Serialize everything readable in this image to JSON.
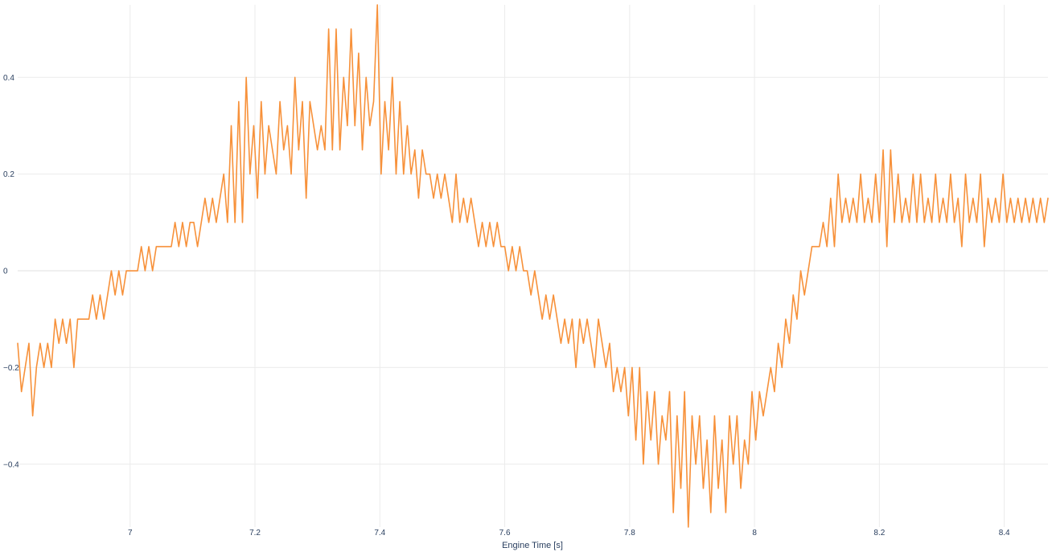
{
  "chart_data": {
    "type": "line",
    "xlabel": "Engine Time [s]",
    "ylabel": "",
    "xlim": [
      6.82,
      8.47
    ],
    "ylim": [
      -0.53,
      0.55
    ],
    "x_ticks": [
      7,
      7.2,
      7.4,
      7.6,
      7.8,
      8,
      8.2,
      8.4
    ],
    "x_tick_labels": [
      "7",
      "7.2",
      "7.4",
      "7.6",
      "7.8",
      "8",
      "8.2",
      "8.4"
    ],
    "y_ticks": [
      -0.4,
      -0.2,
      0,
      0.2,
      0.4
    ],
    "y_tick_labels": [
      "−0.4",
      "−0.2",
      "0",
      "0.2",
      "0.4"
    ],
    "grid": true,
    "series": [
      {
        "color": "#f7913a",
        "points": [
          [
            6.82,
            -0.15
          ],
          [
            6.826,
            -0.25
          ],
          [
            6.832,
            -0.2
          ],
          [
            6.838,
            -0.15
          ],
          [
            6.844,
            -0.3
          ],
          [
            6.85,
            -0.2
          ],
          [
            6.856,
            -0.15
          ],
          [
            6.862,
            -0.2
          ],
          [
            6.868,
            -0.15
          ],
          [
            6.874,
            -0.2
          ],
          [
            6.88,
            -0.1
          ],
          [
            6.886,
            -0.15
          ],
          [
            6.892,
            -0.1
          ],
          [
            6.898,
            -0.15
          ],
          [
            6.904,
            -0.1
          ],
          [
            6.91,
            -0.2
          ],
          [
            6.916,
            -0.1
          ],
          [
            6.922,
            -0.1
          ],
          [
            6.928,
            -0.1
          ],
          [
            6.934,
            -0.1
          ],
          [
            6.94,
            -0.05
          ],
          [
            6.946,
            -0.1
          ],
          [
            6.952,
            -0.05
          ],
          [
            6.958,
            -0.1
          ],
          [
            6.964,
            -0.05
          ],
          [
            6.97,
            0
          ],
          [
            6.976,
            -0.05
          ],
          [
            6.982,
            0
          ],
          [
            6.988,
            -0.05
          ],
          [
            6.994,
            0
          ],
          [
            7.0,
            0
          ],
          [
            7.006,
            0
          ],
          [
            7.012,
            0
          ],
          [
            7.018,
            0.05
          ],
          [
            7.024,
            0
          ],
          [
            7.03,
            0.05
          ],
          [
            7.036,
            0
          ],
          [
            7.042,
            0.05
          ],
          [
            7.048,
            0.05
          ],
          [
            7.054,
            0.05
          ],
          [
            7.06,
            0.05
          ],
          [
            7.066,
            0.05
          ],
          [
            7.072,
            0.1
          ],
          [
            7.078,
            0.05
          ],
          [
            7.084,
            0.1
          ],
          [
            7.09,
            0.05
          ],
          [
            7.096,
            0.1
          ],
          [
            7.102,
            0.1
          ],
          [
            7.108,
            0.05
          ],
          [
            7.114,
            0.1
          ],
          [
            7.12,
            0.15
          ],
          [
            7.126,
            0.1
          ],
          [
            7.132,
            0.15
          ],
          [
            7.138,
            0.1
          ],
          [
            7.144,
            0.15
          ],
          [
            7.15,
            0.2
          ],
          [
            7.156,
            0.1
          ],
          [
            7.162,
            0.3
          ],
          [
            7.168,
            0.1
          ],
          [
            7.174,
            0.35
          ],
          [
            7.18,
            0.1
          ],
          [
            7.186,
            0.4
          ],
          [
            7.192,
            0.2
          ],
          [
            7.198,
            0.3
          ],
          [
            7.204,
            0.15
          ],
          [
            7.21,
            0.35
          ],
          [
            7.216,
            0.2
          ],
          [
            7.222,
            0.3
          ],
          [
            7.228,
            0.25
          ],
          [
            7.234,
            0.2
          ],
          [
            7.24,
            0.35
          ],
          [
            7.246,
            0.25
          ],
          [
            7.252,
            0.3
          ],
          [
            7.258,
            0.2
          ],
          [
            7.264,
            0.4
          ],
          [
            7.27,
            0.25
          ],
          [
            7.276,
            0.35
          ],
          [
            7.282,
            0.15
          ],
          [
            7.288,
            0.35
          ],
          [
            7.294,
            0.3
          ],
          [
            7.3,
            0.25
          ],
          [
            7.306,
            0.3
          ],
          [
            7.312,
            0.25
          ],
          [
            7.318,
            0.5
          ],
          [
            7.324,
            0.25
          ],
          [
            7.33,
            0.5
          ],
          [
            7.336,
            0.25
          ],
          [
            7.342,
            0.4
          ],
          [
            7.348,
            0.3
          ],
          [
            7.354,
            0.5
          ],
          [
            7.36,
            0.3
          ],
          [
            7.366,
            0.45
          ],
          [
            7.372,
            0.25
          ],
          [
            7.378,
            0.4
          ],
          [
            7.384,
            0.3
          ],
          [
            7.39,
            0.35
          ],
          [
            7.396,
            0.55
          ],
          [
            7.402,
            0.2
          ],
          [
            7.408,
            0.35
          ],
          [
            7.414,
            0.25
          ],
          [
            7.42,
            0.4
          ],
          [
            7.426,
            0.2
          ],
          [
            7.432,
            0.35
          ],
          [
            7.438,
            0.2
          ],
          [
            7.444,
            0.3
          ],
          [
            7.45,
            0.2
          ],
          [
            7.456,
            0.25
          ],
          [
            7.462,
            0.15
          ],
          [
            7.468,
            0.25
          ],
          [
            7.474,
            0.2
          ],
          [
            7.48,
            0.2
          ],
          [
            7.486,
            0.15
          ],
          [
            7.492,
            0.2
          ],
          [
            7.498,
            0.15
          ],
          [
            7.504,
            0.2
          ],
          [
            7.51,
            0.15
          ],
          [
            7.516,
            0.1
          ],
          [
            7.522,
            0.2
          ],
          [
            7.528,
            0.1
          ],
          [
            7.534,
            0.15
          ],
          [
            7.54,
            0.1
          ],
          [
            7.546,
            0.15
          ],
          [
            7.552,
            0.1
          ],
          [
            7.558,
            0.05
          ],
          [
            7.564,
            0.1
          ],
          [
            7.57,
            0.05
          ],
          [
            7.576,
            0.1
          ],
          [
            7.582,
            0.05
          ],
          [
            7.588,
            0.1
          ],
          [
            7.594,
            0.05
          ],
          [
            7.6,
            0.05
          ],
          [
            7.606,
            0
          ],
          [
            7.612,
            0.05
          ],
          [
            7.618,
            0
          ],
          [
            7.624,
            0.05
          ],
          [
            7.63,
            0
          ],
          [
            7.636,
            0
          ],
          [
            7.642,
            -0.05
          ],
          [
            7.648,
            0
          ],
          [
            7.654,
            -0.05
          ],
          [
            7.66,
            -0.1
          ],
          [
            7.666,
            -0.05
          ],
          [
            7.672,
            -0.1
          ],
          [
            7.678,
            -0.05
          ],
          [
            7.684,
            -0.1
          ],
          [
            7.69,
            -0.15
          ],
          [
            7.696,
            -0.1
          ],
          [
            7.702,
            -0.15
          ],
          [
            7.708,
            -0.1
          ],
          [
            7.714,
            -0.2
          ],
          [
            7.72,
            -0.1
          ],
          [
            7.726,
            -0.15
          ],
          [
            7.732,
            -0.1
          ],
          [
            7.738,
            -0.15
          ],
          [
            7.744,
            -0.2
          ],
          [
            7.75,
            -0.1
          ],
          [
            7.756,
            -0.15
          ],
          [
            7.762,
            -0.2
          ],
          [
            7.768,
            -0.15
          ],
          [
            7.774,
            -0.25
          ],
          [
            7.78,
            -0.2
          ],
          [
            7.786,
            -0.25
          ],
          [
            7.792,
            -0.2
          ],
          [
            7.798,
            -0.3
          ],
          [
            7.804,
            -0.2
          ],
          [
            7.81,
            -0.35
          ],
          [
            7.816,
            -0.2
          ],
          [
            7.822,
            -0.4
          ],
          [
            7.828,
            -0.25
          ],
          [
            7.834,
            -0.35
          ],
          [
            7.84,
            -0.25
          ],
          [
            7.846,
            -0.4
          ],
          [
            7.852,
            -0.3
          ],
          [
            7.858,
            -0.35
          ],
          [
            7.864,
            -0.25
          ],
          [
            7.87,
            -0.5
          ],
          [
            7.876,
            -0.3
          ],
          [
            7.882,
            -0.45
          ],
          [
            7.888,
            -0.25
          ],
          [
            7.894,
            -0.53
          ],
          [
            7.9,
            -0.3
          ],
          [
            7.906,
            -0.4
          ],
          [
            7.912,
            -0.3
          ],
          [
            7.918,
            -0.45
          ],
          [
            7.924,
            -0.35
          ],
          [
            7.93,
            -0.5
          ],
          [
            7.936,
            -0.3
          ],
          [
            7.942,
            -0.45
          ],
          [
            7.948,
            -0.35
          ],
          [
            7.954,
            -0.5
          ],
          [
            7.96,
            -0.3
          ],
          [
            7.966,
            -0.4
          ],
          [
            7.972,
            -0.3
          ],
          [
            7.978,
            -0.45
          ],
          [
            7.984,
            -0.35
          ],
          [
            7.99,
            -0.4
          ],
          [
            7.996,
            -0.25
          ],
          [
            8.002,
            -0.35
          ],
          [
            8.008,
            -0.25
          ],
          [
            8.014,
            -0.3
          ],
          [
            8.02,
            -0.25
          ],
          [
            8.026,
            -0.2
          ],
          [
            8.032,
            -0.25
          ],
          [
            8.038,
            -0.15
          ],
          [
            8.044,
            -0.2
          ],
          [
            8.05,
            -0.1
          ],
          [
            8.056,
            -0.15
          ],
          [
            8.062,
            -0.05
          ],
          [
            8.068,
            -0.1
          ],
          [
            8.074,
            0
          ],
          [
            8.08,
            -0.05
          ],
          [
            8.086,
            0
          ],
          [
            8.092,
            0.05
          ],
          [
            8.098,
            0.05
          ],
          [
            8.104,
            0.05
          ],
          [
            8.11,
            0.1
          ],
          [
            8.116,
            0.05
          ],
          [
            8.122,
            0.15
          ],
          [
            8.128,
            0.05
          ],
          [
            8.134,
            0.2
          ],
          [
            8.14,
            0.1
          ],
          [
            8.146,
            0.15
          ],
          [
            8.152,
            0.1
          ],
          [
            8.158,
            0.15
          ],
          [
            8.164,
            0.1
          ],
          [
            8.17,
            0.2
          ],
          [
            8.176,
            0.1
          ],
          [
            8.182,
            0.15
          ],
          [
            8.188,
            0.1
          ],
          [
            8.194,
            0.2
          ],
          [
            8.2,
            0.1
          ],
          [
            8.206,
            0.25
          ],
          [
            8.212,
            0.05
          ],
          [
            8.218,
            0.25
          ],
          [
            8.224,
            0.1
          ],
          [
            8.23,
            0.2
          ],
          [
            8.236,
            0.1
          ],
          [
            8.242,
            0.15
          ],
          [
            8.248,
            0.1
          ],
          [
            8.254,
            0.2
          ],
          [
            8.26,
            0.1
          ],
          [
            8.266,
            0.2
          ],
          [
            8.272,
            0.1
          ],
          [
            8.278,
            0.15
          ],
          [
            8.284,
            0.1
          ],
          [
            8.29,
            0.2
          ],
          [
            8.296,
            0.1
          ],
          [
            8.302,
            0.15
          ],
          [
            8.308,
            0.1
          ],
          [
            8.314,
            0.2
          ],
          [
            8.32,
            0.1
          ],
          [
            8.326,
            0.15
          ],
          [
            8.332,
            0.05
          ],
          [
            8.338,
            0.2
          ],
          [
            8.344,
            0.1
          ],
          [
            8.35,
            0.15
          ],
          [
            8.356,
            0.1
          ],
          [
            8.362,
            0.2
          ],
          [
            8.368,
            0.05
          ],
          [
            8.374,
            0.15
          ],
          [
            8.38,
            0.1
          ],
          [
            8.386,
            0.15
          ],
          [
            8.392,
            0.1
          ],
          [
            8.398,
            0.2
          ],
          [
            8.404,
            0.1
          ],
          [
            8.41,
            0.15
          ],
          [
            8.416,
            0.1
          ],
          [
            8.422,
            0.15
          ],
          [
            8.428,
            0.1
          ],
          [
            8.434,
            0.15
          ],
          [
            8.44,
            0.1
          ],
          [
            8.446,
            0.15
          ],
          [
            8.452,
            0.1
          ],
          [
            8.458,
            0.15
          ],
          [
            8.464,
            0.1
          ],
          [
            8.47,
            0.15
          ]
        ]
      }
    ]
  }
}
